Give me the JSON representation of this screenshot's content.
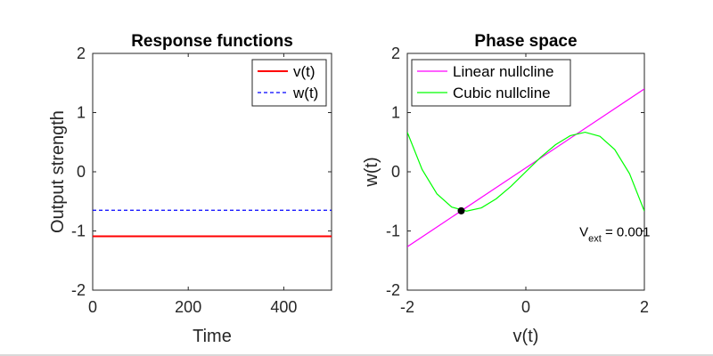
{
  "chart_data": [
    {
      "type": "line",
      "title": "Response functions",
      "xlabel": "Time",
      "ylabel": "Output strength",
      "xlim": [
        0,
        500
      ],
      "ylim": [
        -2,
        2
      ],
      "xticks": [
        0,
        200,
        400
      ],
      "yticks": [
        -2,
        -1,
        0,
        1,
        2
      ],
      "legend_position": "top-right",
      "grid": false,
      "series": [
        {
          "name": "v(t)",
          "color": "#ff0000",
          "style": "solid",
          "x": [
            0,
            500
          ],
          "y": [
            -1.09,
            -1.09
          ]
        },
        {
          "name": "w(t)",
          "color": "#0000ff",
          "style": "dashed",
          "x": [
            0,
            500
          ],
          "y": [
            -0.65,
            -0.65
          ]
        }
      ]
    },
    {
      "type": "line",
      "title": "Phase space",
      "xlabel": "v(t)",
      "ylabel": "w(t)",
      "xlim": [
        -2,
        2
      ],
      "ylim": [
        -2,
        2
      ],
      "xticks": [
        -2,
        0,
        2
      ],
      "yticks": [
        -2,
        -1,
        0,
        1,
        2
      ],
      "legend_position": "top-left",
      "grid": false,
      "series": [
        {
          "name": "Linear nullcline",
          "color": "#ff00ff",
          "style": "solid",
          "x": [
            -2,
            2
          ],
          "y": [
            -1.267,
            1.4
          ]
        },
        {
          "name": "Cubic nullcline",
          "color": "#00ff00",
          "style": "solid",
          "x": [
            -2.0,
            -1.75,
            -1.5,
            -1.25,
            -1.0,
            -0.75,
            -0.5,
            -0.25,
            0.0,
            0.25,
            0.5,
            0.75,
            1.0,
            1.25,
            1.5,
            1.75,
            2.0
          ],
          "y": [
            0.668,
            0.038,
            -0.374,
            -0.597,
            -0.665,
            -0.61,
            -0.457,
            -0.245,
            0.001,
            0.245,
            0.457,
            0.61,
            0.668,
            0.599,
            0.376,
            -0.033,
            -0.666
          ]
        }
      ],
      "points": [
        {
          "x": -1.09,
          "y": -0.66,
          "color": "#000000"
        }
      ],
      "annotation": {
        "base": "V",
        "sub": "ext",
        "rest": " = 0.001",
        "x": 1.5,
        "y": -1.0
      }
    }
  ]
}
